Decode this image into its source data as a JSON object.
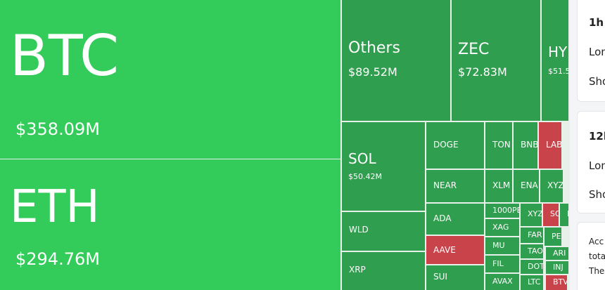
{
  "treemap": {
    "tiles": [
      {
        "label": "BTC",
        "value": "$358.09M"
      },
      {
        "label": "ETH",
        "value": "$294.76M"
      },
      {
        "label": "Others",
        "value": "$89.52M"
      },
      {
        "label": "ZEC",
        "value": "$72.83M"
      },
      {
        "label": "HY",
        "value": "$51.5"
      },
      {
        "label": "SOL",
        "value": "$50.42M"
      },
      {
        "label": "WLD"
      },
      {
        "label": "XRP"
      },
      {
        "label": "DOGE"
      },
      {
        "label": "NEAR"
      },
      {
        "label": "ADA"
      },
      {
        "label": "AAVE"
      },
      {
        "label": "SUI"
      },
      {
        "label": "TON"
      },
      {
        "label": "BNB"
      },
      {
        "label": "LAB"
      },
      {
        "label": "XLM"
      },
      {
        "label": "ENA"
      },
      {
        "label": "XYZ"
      },
      {
        "label": "1000PE"
      },
      {
        "label": "XAG"
      },
      {
        "label": "MU"
      },
      {
        "label": "FIL"
      },
      {
        "label": "AVAX"
      },
      {
        "label": "XYZ"
      },
      {
        "label": "SO"
      },
      {
        "label": "P"
      },
      {
        "label": "FAR"
      },
      {
        "label": "PE"
      },
      {
        "label": "TAO"
      },
      {
        "label": "ARI"
      },
      {
        "label": "DOT"
      },
      {
        "label": "INJ"
      },
      {
        "label": "LTC"
      },
      {
        "label": "BTV"
      }
    ]
  },
  "sidebar": {
    "cards": [
      {
        "title": "1h",
        "rows": [
          "Lon",
          "Sho"
        ]
      },
      {
        "title": "12h",
        "rows": [
          "Lon",
          "Sho"
        ]
      }
    ],
    "note": [
      "Acc",
      "tota",
      "The"
    ]
  }
}
